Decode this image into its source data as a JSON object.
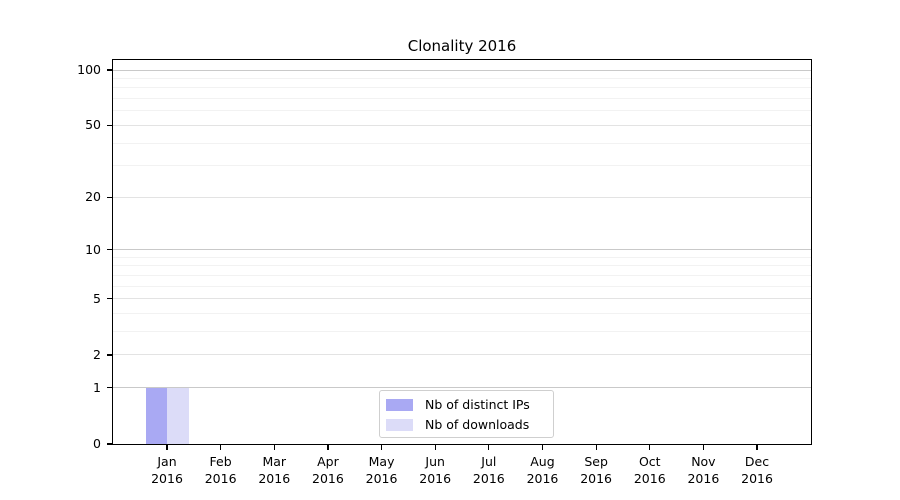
{
  "chart_data": {
    "type": "bar",
    "title": "Clonality 2016",
    "x_axis": {
      "categories": [
        {
          "month": "Jan",
          "year": "2016"
        },
        {
          "month": "Feb",
          "year": "2016"
        },
        {
          "month": "Mar",
          "year": "2016"
        },
        {
          "month": "Apr",
          "year": "2016"
        },
        {
          "month": "May",
          "year": "2016"
        },
        {
          "month": "Jun",
          "year": "2016"
        },
        {
          "month": "Jul",
          "year": "2016"
        },
        {
          "month": "Aug",
          "year": "2016"
        },
        {
          "month": "Sep",
          "year": "2016"
        },
        {
          "month": "Oct",
          "year": "2016"
        },
        {
          "month": "Nov",
          "year": "2016"
        },
        {
          "month": "Dec",
          "year": "2016"
        }
      ]
    },
    "y_axis": {
      "scale": "log1p",
      "tick_values": [
        0,
        1,
        2,
        5,
        10,
        20,
        50,
        100
      ],
      "tick_labels": [
        "0",
        "1",
        "2",
        "5",
        "10",
        "20",
        "50",
        "100"
      ],
      "decade_gridlines": [
        1,
        10,
        100
      ],
      "mid_gridlines": [
        2,
        5,
        20,
        50
      ],
      "minor_gridlines": [
        3,
        4,
        6,
        7,
        8,
        9,
        30,
        40,
        60,
        70,
        80,
        90
      ],
      "ylim": [
        0,
        113
      ]
    },
    "series": [
      {
        "name": "Nb of distinct IPs",
        "color": "#a9a9f3",
        "values": [
          1,
          0,
          0,
          0,
          0,
          0,
          0,
          0,
          0,
          0,
          0,
          0
        ]
      },
      {
        "name": "Nb of downloads",
        "color": "#dcdcf8",
        "values": [
          1,
          0,
          0,
          0,
          0,
          0,
          0,
          0,
          0,
          0,
          0,
          0
        ]
      }
    ],
    "legend": {
      "position": "lower-center"
    },
    "colors": {
      "decade_grid": "#c9c9c9",
      "mid_grid": "#e3e3e3",
      "minor_grid": "#f2f2f2",
      "spine": "#000000",
      "text": "#000000",
      "background": "#ffffff"
    }
  }
}
